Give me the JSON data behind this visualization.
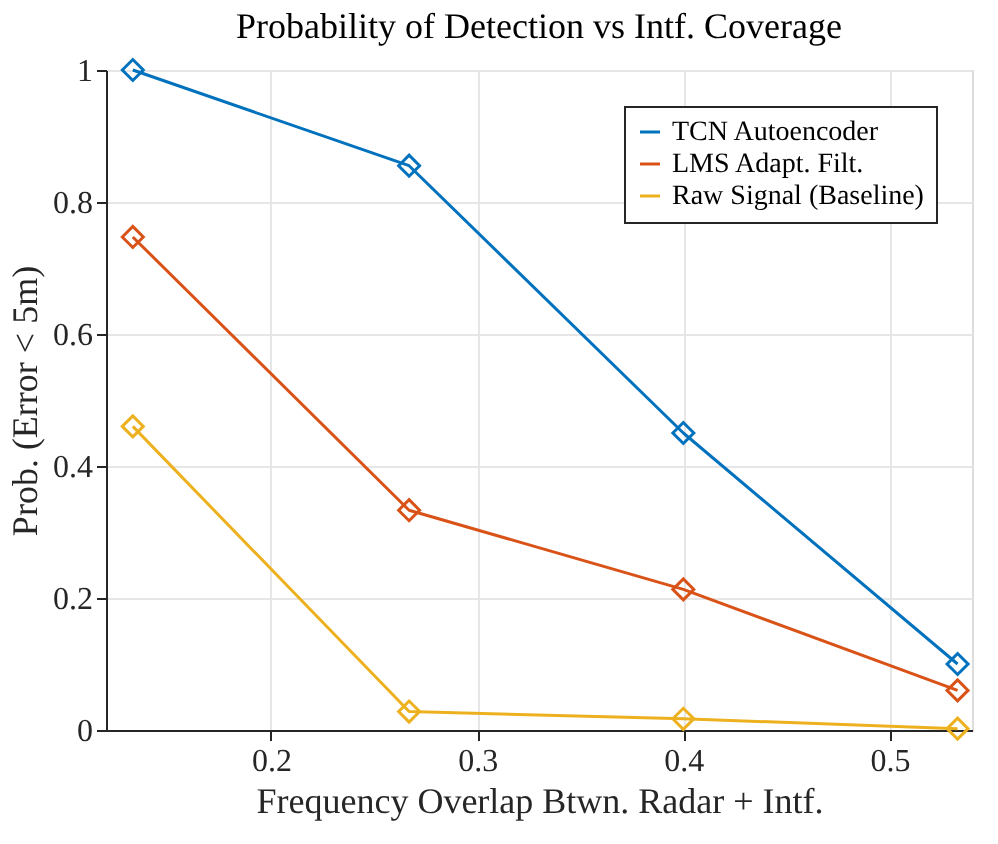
{
  "chart_data": {
    "type": "line",
    "title": "Probability of Detection vs Intf. Coverage",
    "xlabel": "Frequency Overlap Btwn. Radar + Intf.",
    "ylabel": "Prob. (Error < 5m)",
    "x": [
      0.133,
      0.267,
      0.4,
      0.533
    ],
    "series": [
      {
        "name": "TCN Autoencoder",
        "color": "#0072bd",
        "values": [
          1.0,
          0.855,
          0.45,
          0.1
        ]
      },
      {
        "name": "LMS Adapt. Filt.",
        "color": "#d95319",
        "values": [
          0.747,
          0.333,
          0.213,
          0.06
        ]
      },
      {
        "name": "Raw Signal (Baseline)",
        "color": "#edb120",
        "values": [
          0.46,
          0.028,
          0.017,
          0.002
        ]
      }
    ],
    "xlim": [
      0.12,
      0.54
    ],
    "xticks": [
      0.2,
      0.3,
      0.4,
      0.5
    ],
    "ylim": [
      0,
      1
    ],
    "yticks": [
      0,
      0.2,
      0.4,
      0.6,
      0.8,
      1
    ],
    "grid": true,
    "legend": "top right",
    "marker": "diamond",
    "line_style": "solid"
  }
}
